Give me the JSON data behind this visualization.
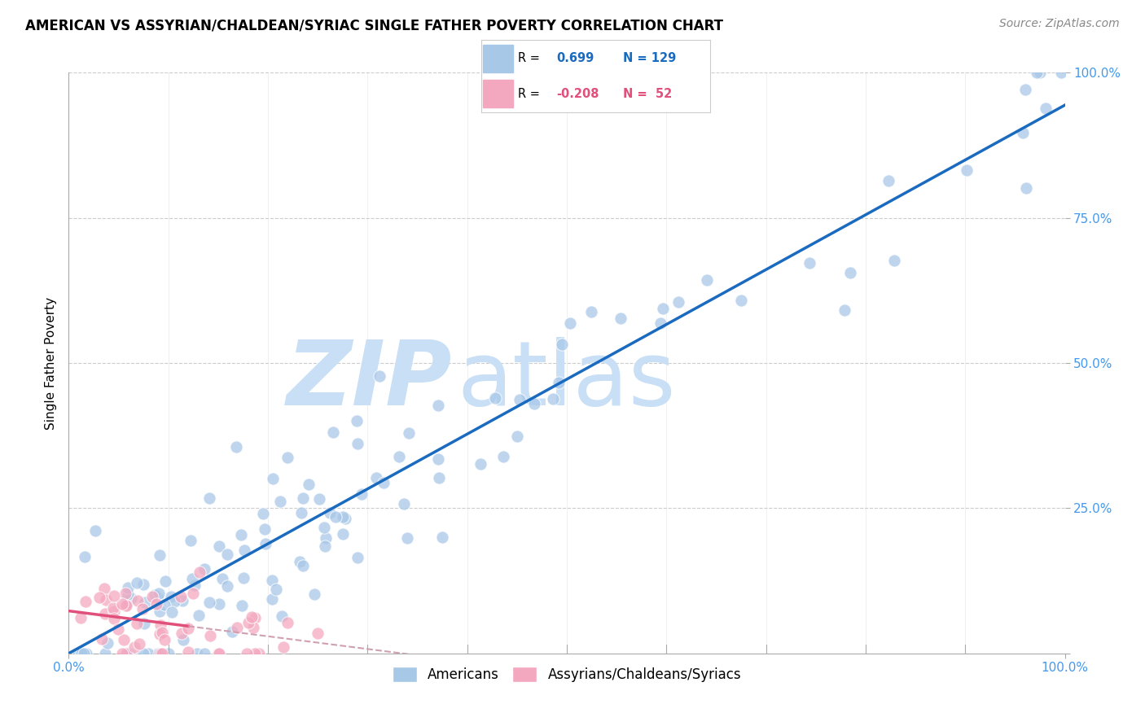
{
  "title": "AMERICAN VS ASSYRIAN/CHALDEAN/SYRIAC SINGLE FATHER POVERTY CORRELATION CHART",
  "source": "Source: ZipAtlas.com",
  "ylabel": "Single Father Poverty",
  "xlim": [
    0,
    1
  ],
  "ylim": [
    0,
    1
  ],
  "r_american": 0.699,
  "n_american": 129,
  "r_assyrian": -0.208,
  "n_assyrian": 52,
  "american_color": "#a8c8e8",
  "assyrian_color": "#f4a8c0",
  "trend_american_color": "#1a6bbf",
  "trend_assyrian_solid_color": "#e0507a",
  "trend_assyrian_dash_color": "#d0a0b0",
  "watermark_zip_color": "#c8dff5",
  "watermark_atlas_color": "#c8dff5",
  "background_color": "#ffffff",
  "grid_color": "#cccccc",
  "tick_color": "#4499ee",
  "legend_border_color": "#cccccc",
  "title_fontsize": 12,
  "source_fontsize": 10,
  "tick_fontsize": 11,
  "ylabel_fontsize": 11
}
